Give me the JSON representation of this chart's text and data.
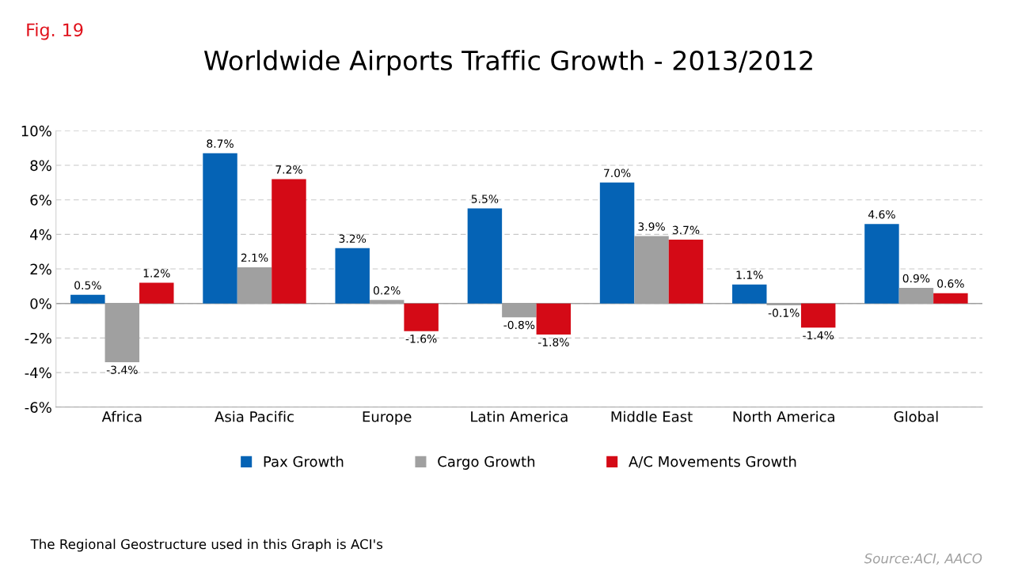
{
  "chart_data": {
    "type": "bar",
    "title": "Worldwide Airports Traffic Growth - 2013/2012",
    "categories": [
      "Africa",
      "Asia Pacific",
      "Europe",
      "Latin America",
      "Middle East",
      "North America",
      "Global"
    ],
    "series": [
      {
        "name": "Pax Growth",
        "color": "#0563b5",
        "values": [
          0.5,
          8.7,
          3.2,
          5.5,
          7.0,
          1.1,
          4.6
        ],
        "value_labels": [
          "0.5%",
          "8.7%",
          "3.2%",
          "5.5%",
          "7.0%",
          "1.1%",
          "4.6%"
        ]
      },
      {
        "name": "Cargo Growth",
        "color": "#a0a0a0",
        "values": [
          -3.4,
          2.1,
          0.2,
          -0.8,
          3.9,
          -0.1,
          0.9
        ],
        "value_labels": [
          "-3.4%",
          "2.1%",
          "0.2%",
          "-0.8%",
          "3.9%",
          "-0.1%",
          "0.9%"
        ]
      },
      {
        "name": "A/C Movements Growth",
        "color": "#d40a16",
        "values": [
          1.2,
          7.2,
          -1.6,
          -1.8,
          3.7,
          -1.4,
          0.6
        ],
        "value_labels": [
          "1.2%",
          "7.2%",
          "-1.6%",
          "-1.8%",
          "3.7%",
          "-1.4%",
          "0.6%"
        ]
      }
    ],
    "ylim": [
      -6,
      10
    ],
    "yticks": [
      {
        "value": -6,
        "label": "-6%"
      },
      {
        "value": -4,
        "label": "-4%"
      },
      {
        "value": -2,
        "label": "-2%"
      },
      {
        "value": 0,
        "label": "0%"
      },
      {
        "value": 2,
        "label": "2%"
      },
      {
        "value": 4,
        "label": "4%"
      },
      {
        "value": 6,
        "label": "6%"
      },
      {
        "value": 8,
        "label": "8%"
      },
      {
        "value": 10,
        "label": "10%"
      }
    ],
    "grid": "y",
    "legend": "bottom",
    "annotations": [
      "Fig. 19",
      "The Regional Geostructure used in this Graph is ACI's",
      "Source:ACI, AACO"
    ]
  }
}
